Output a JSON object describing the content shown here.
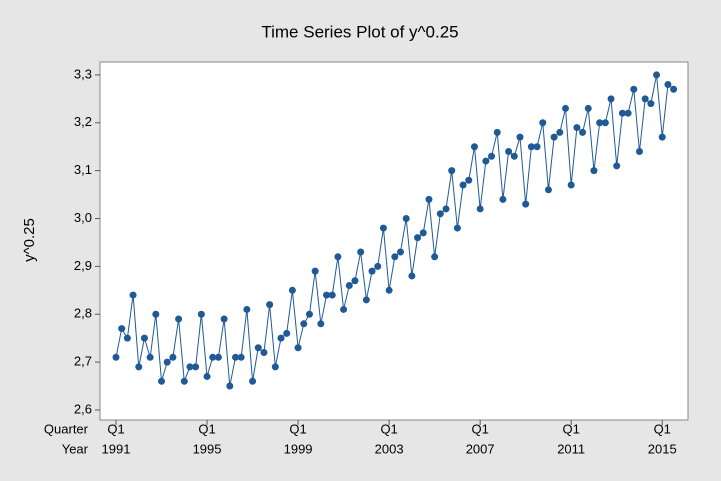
{
  "chart_data": {
    "type": "line",
    "title": "Time Series Plot of y^0.25",
    "ylabel": "y^0.25",
    "x_row_titles": [
      "Quarter",
      "Year"
    ],
    "quarters": [
      "Q1",
      null,
      null,
      null,
      null,
      null,
      null,
      null,
      null,
      null,
      null,
      null,
      null,
      null,
      null,
      null,
      "Q1",
      null,
      null,
      null,
      null,
      null,
      null,
      null,
      null,
      null,
      null,
      null,
      null,
      null,
      null,
      null,
      "Q1",
      null,
      null,
      null,
      null,
      null,
      null,
      null,
      null,
      null,
      null,
      null,
      null,
      null,
      null,
      null,
      "Q1",
      null,
      null,
      null,
      null,
      null,
      null,
      null,
      null,
      null,
      null,
      null,
      null,
      null,
      null,
      null,
      "Q1",
      null,
      null,
      null,
      null,
      null,
      null,
      null,
      null,
      null,
      null,
      null,
      null,
      null,
      null,
      null,
      "Q1",
      null,
      null,
      null,
      null,
      null,
      null,
      null,
      null,
      null,
      null,
      null,
      null,
      null,
      null,
      null,
      "Q1",
      null,
      null
    ],
    "years": [
      "1991",
      null,
      null,
      null,
      null,
      null,
      null,
      null,
      null,
      null,
      null,
      null,
      null,
      null,
      null,
      null,
      "1995",
      null,
      null,
      null,
      null,
      null,
      null,
      null,
      null,
      null,
      null,
      null,
      null,
      null,
      null,
      null,
      "1999",
      null,
      null,
      null,
      null,
      null,
      null,
      null,
      null,
      null,
      null,
      null,
      null,
      null,
      null,
      null,
      "2003",
      null,
      null,
      null,
      null,
      null,
      null,
      null,
      null,
      null,
      null,
      null,
      null,
      null,
      null,
      null,
      "2007",
      null,
      null,
      null,
      null,
      null,
      null,
      null,
      null,
      null,
      null,
      null,
      null,
      null,
      null,
      null,
      "2011",
      null,
      null,
      null,
      null,
      null,
      null,
      null,
      null,
      null,
      null,
      null,
      null,
      null,
      null,
      null,
      "2015",
      null,
      null
    ],
    "values": [
      2.71,
      2.77,
      2.75,
      2.84,
      2.69,
      2.75,
      2.71,
      2.8,
      2.66,
      2.7,
      2.71,
      2.79,
      2.66,
      2.69,
      2.69,
      2.8,
      2.67,
      2.71,
      2.71,
      2.79,
      2.65,
      2.71,
      2.71,
      2.81,
      2.66,
      2.73,
      2.72,
      2.82,
      2.69,
      2.75,
      2.76,
      2.85,
      2.73,
      2.78,
      2.8,
      2.89,
      2.78,
      2.84,
      2.84,
      2.92,
      2.81,
      2.86,
      2.87,
      2.93,
      2.83,
      2.89,
      2.9,
      2.98,
      2.85,
      2.92,
      2.93,
      3.0,
      2.88,
      2.96,
      2.97,
      3.04,
      2.92,
      3.01,
      3.02,
      3.1,
      2.98,
      3.07,
      3.08,
      3.15,
      3.02,
      3.12,
      3.13,
      3.18,
      3.04,
      3.14,
      3.13,
      3.17,
      3.03,
      3.15,
      3.15,
      3.2,
      3.06,
      3.17,
      3.18,
      3.23,
      3.07,
      3.19,
      3.18,
      3.23,
      3.1,
      3.2,
      3.2,
      3.25,
      3.11,
      3.22,
      3.22,
      3.27,
      3.14,
      3.25,
      3.24,
      3.3,
      3.17,
      3.28,
      3.27
    ],
    "color": "#1f5a96",
    "ylim": [
      2.579,
      3.327
    ],
    "yticks": [
      {
        "value": 2.6,
        "label": "2,6"
      },
      {
        "value": 2.7,
        "label": "2,7"
      },
      {
        "value": 2.8,
        "label": "2,8"
      },
      {
        "value": 2.9,
        "label": "2,9"
      },
      {
        "value": 3.0,
        "label": "3,0"
      },
      {
        "value": 3.1,
        "label": "3,1"
      },
      {
        "value": 3.2,
        "label": "3,2"
      },
      {
        "value": 3.3,
        "label": "3,3"
      }
    ]
  }
}
